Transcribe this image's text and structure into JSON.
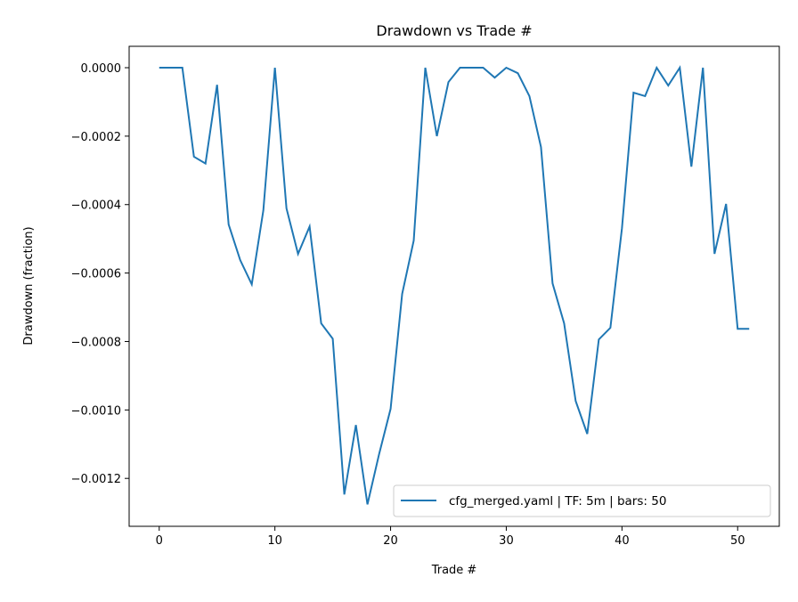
{
  "chart_data": {
    "type": "line",
    "title": "Drawdown vs Trade #",
    "xlabel": "Trade #",
    "ylabel": "Drawdown (fraction)",
    "xlim": [
      -2.6,
      53.6
    ],
    "ylim": [
      -0.00134,
      6.25e-05
    ],
    "xticks": [
      0,
      10,
      20,
      30,
      40,
      50
    ],
    "xtick_labels": [
      "0",
      "10",
      "20",
      "30",
      "40",
      "50"
    ],
    "yticks": [
      0,
      -0.0002,
      -0.0004,
      -0.0006,
      -0.0008,
      -0.001,
      -0.0012
    ],
    "ytick_labels": [
      "0.0000",
      "−0.0002",
      "−0.0004",
      "−0.0006",
      "−0.0008",
      "−0.0010",
      "−0.0012"
    ],
    "grid": false,
    "legend_position": "lower-right",
    "series": [
      {
        "name": "cfg_merged.yaml | TF: 5m | bars: 50",
        "color": "#1f77b4",
        "x": [
          0,
          1,
          2,
          3,
          4,
          5,
          6,
          7,
          8,
          9,
          10,
          11,
          12,
          13,
          14,
          15,
          16,
          17,
          18,
          19,
          20,
          21,
          22,
          23,
          24,
          25,
          26,
          27,
          28,
          29,
          30,
          31,
          32,
          33,
          34,
          35,
          36,
          37,
          38,
          39,
          40,
          41,
          42,
          43,
          44,
          45,
          46,
          47,
          48,
          49,
          50,
          51
        ],
        "y": [
          0,
          0,
          0,
          -0.00026,
          -0.00028,
          -5e-05,
          -0.000458,
          -0.000562,
          -0.000633,
          -0.000417,
          0,
          -0.000411,
          -0.000544,
          -0.000464,
          -0.000747,
          -0.000792,
          -0.001247,
          -0.001044,
          -0.001276,
          -0.00113,
          -0.000997,
          -0.000661,
          -0.000505,
          0,
          -0.0002,
          -4.2e-05,
          0,
          0,
          0,
          -2.9e-05,
          0,
          -1.6e-05,
          -8.3e-05,
          -0.000232,
          -0.00063,
          -0.000747,
          -0.000974,
          -0.00107,
          -0.000794,
          -0.00076,
          -0.000469,
          -7.3e-05,
          -8.3e-05,
          0,
          -5.2e-05,
          0,
          -0.000289,
          0,
          -0.000544,
          -0.000398,
          -0.000763,
          -0.000763
        ]
      }
    ]
  }
}
